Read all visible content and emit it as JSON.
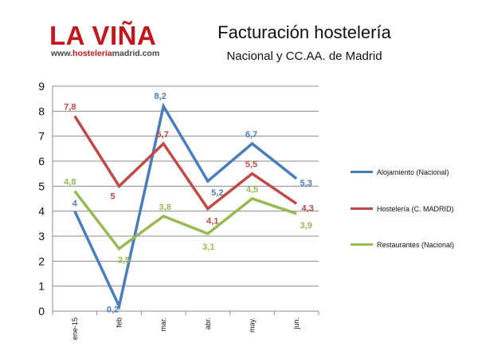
{
  "logo": {
    "name": "LA VIÑA",
    "url_prefix": "www.",
    "url_highlight": "hosteleria",
    "url_suffix": "madrid.com"
  },
  "colors": {
    "logo_red": "#c4161c",
    "alojamiento": "#4a7ebb",
    "hosteleria": "#be4b48",
    "restaurantes": "#98b954"
  },
  "chart_data": {
    "type": "line",
    "title": "Facturación hostelería",
    "subtitle": "Nacional y CC.AA. de Madrid",
    "categories": [
      "ene-15",
      "feb",
      "mar.",
      "abr.",
      "may.",
      "jun."
    ],
    "ylim": [
      0,
      9
    ],
    "yticks": [
      "0",
      "1",
      "2",
      "3",
      "4",
      "5",
      "6",
      "7",
      "8",
      "9"
    ],
    "grid": "horizontal",
    "legend_position": "right",
    "series": [
      {
        "name": "Alojamiento (Nacional)",
        "color": "#4a7ebb",
        "values": [
          4,
          0.2,
          8.2,
          5.2,
          6.7,
          5.3
        ],
        "labels": [
          "4",
          "0,2",
          "8,2",
          "5,2",
          "6,7",
          "5,3"
        ]
      },
      {
        "name": "Hostelería (C. MADRID)",
        "color": "#be4b48",
        "values": [
          7.8,
          5,
          6.7,
          4.1,
          5.5,
          4.3
        ],
        "labels": [
          "7,8",
          "5",
          "6,7",
          "4,1",
          "5,5",
          "4,3"
        ]
      },
      {
        "name": "Restaurantes (Nacional)",
        "color": "#98b954",
        "values": [
          4.8,
          2.5,
          3.8,
          3.1,
          4.5,
          3.9
        ],
        "labels": [
          "4,8",
          "2,5",
          "3,8",
          "3,1",
          "4,5",
          "3,9"
        ]
      }
    ]
  }
}
